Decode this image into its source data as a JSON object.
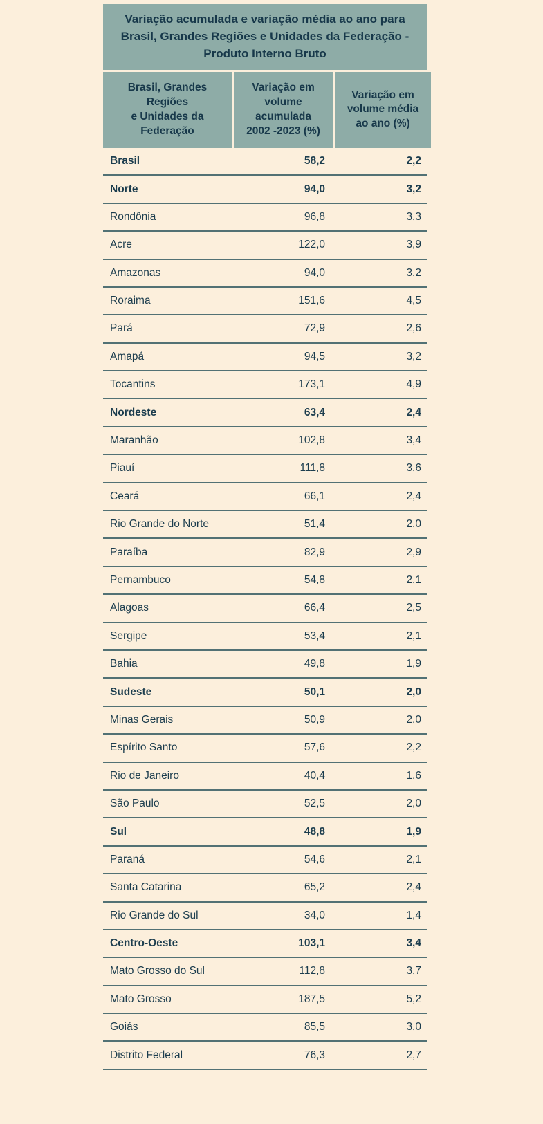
{
  "page": {
    "background_color": "#fcefdc",
    "accent_teal": "#8eaca7",
    "ink_color": "#1c3d4e",
    "separator_color": "#527174"
  },
  "header": {
    "title": "Variação acumulada e variação média ao ano para Brasil, Grandes Regiões e Unidades da Federação - Produto Interno Bruto",
    "col1": "Brasil, Grandes\nRegiões\ne Unidades da\nFederação",
    "col2": "Variação em\nvolume\nacumulada\n2002 -2023 (%)",
    "col3": "Variação em\nvolume média\nao ano (%)"
  },
  "chart_data": {
    "type": "table",
    "title": "Variação acumulada e variação média ao ano para Brasil, Grandes Regiões e Unidades da Federação - Produto Interno Bruto",
    "columns": [
      "Brasil, Grandes Regiões e Unidades da Federação",
      "Variação em volume acumulada 2002 -2023 (%)",
      "Variação em volume média ao ano (%)"
    ],
    "rows": [
      {
        "label": "Brasil",
        "acumulada": "58,2",
        "media": "2,2",
        "bold": true
      },
      {
        "label": "Norte",
        "acumulada": "94,0",
        "media": "3,2",
        "bold": true
      },
      {
        "label": "Rondônia",
        "acumulada": "96,8",
        "media": "3,3",
        "bold": false
      },
      {
        "label": "Acre",
        "acumulada": "122,0",
        "media": "3,9",
        "bold": false
      },
      {
        "label": "Amazonas",
        "acumulada": "94,0",
        "media": "3,2",
        "bold": false
      },
      {
        "label": "Roraima",
        "acumulada": "151,6",
        "media": "4,5",
        "bold": false
      },
      {
        "label": "Pará",
        "acumulada": "72,9",
        "media": "2,6",
        "bold": false
      },
      {
        "label": "Amapá",
        "acumulada": "94,5",
        "media": "3,2",
        "bold": false
      },
      {
        "label": "Tocantins",
        "acumulada": "173,1",
        "media": "4,9",
        "bold": false
      },
      {
        "label": "Nordeste",
        "acumulada": "63,4",
        "media": "2,4",
        "bold": true
      },
      {
        "label": "Maranhão",
        "acumulada": "102,8",
        "media": "3,4",
        "bold": false
      },
      {
        "label": "Piauí",
        "acumulada": "111,8",
        "media": "3,6",
        "bold": false
      },
      {
        "label": "Ceará",
        "acumulada": "66,1",
        "media": "2,4",
        "bold": false
      },
      {
        "label": "Rio Grande do Norte",
        "acumulada": "51,4",
        "media": "2,0",
        "bold": false
      },
      {
        "label": "Paraíba",
        "acumulada": "82,9",
        "media": "2,9",
        "bold": false
      },
      {
        "label": "Pernambuco",
        "acumulada": "54,8",
        "media": "2,1",
        "bold": false
      },
      {
        "label": "Alagoas",
        "acumulada": "66,4",
        "media": "2,5",
        "bold": false
      },
      {
        "label": "Sergipe",
        "acumulada": "53,4",
        "media": "2,1",
        "bold": false
      },
      {
        "label": "Bahia",
        "acumulada": "49,8",
        "media": "1,9",
        "bold": false
      },
      {
        "label": "Sudeste",
        "acumulada": "50,1",
        "media": "2,0",
        "bold": true
      },
      {
        "label": "Minas Gerais",
        "acumulada": "50,9",
        "media": "2,0",
        "bold": false
      },
      {
        "label": "Espírito Santo",
        "acumulada": "57,6",
        "media": "2,2",
        "bold": false
      },
      {
        "label": "Rio de Janeiro",
        "acumulada": "40,4",
        "media": "1,6",
        "bold": false
      },
      {
        "label": "São Paulo",
        "acumulada": "52,5",
        "media": "2,0",
        "bold": false
      },
      {
        "label": "Sul",
        "acumulada": "48,8",
        "media": "1,9",
        "bold": true
      },
      {
        "label": "Paraná",
        "acumulada": "54,6",
        "media": "2,1",
        "bold": false
      },
      {
        "label": "Santa Catarina",
        "acumulada": "65,2",
        "media": "2,4",
        "bold": false
      },
      {
        "label": "Rio Grande do Sul",
        "acumulada": "34,0",
        "media": "1,4",
        "bold": false
      },
      {
        "label": "Centro-Oeste",
        "acumulada": "103,1",
        "media": "3,4",
        "bold": true
      },
      {
        "label": "Mato Grosso do Sul",
        "acumulada": "112,8",
        "media": "3,7",
        "bold": false
      },
      {
        "label": "Mato Grosso",
        "acumulada": "187,5",
        "media": "5,2",
        "bold": false
      },
      {
        "label": "Goiás",
        "acumulada": "85,5",
        "media": "3,0",
        "bold": false
      },
      {
        "label": "Distrito Federal",
        "acumulada": "76,3",
        "media": "2,7",
        "bold": false
      }
    ]
  }
}
